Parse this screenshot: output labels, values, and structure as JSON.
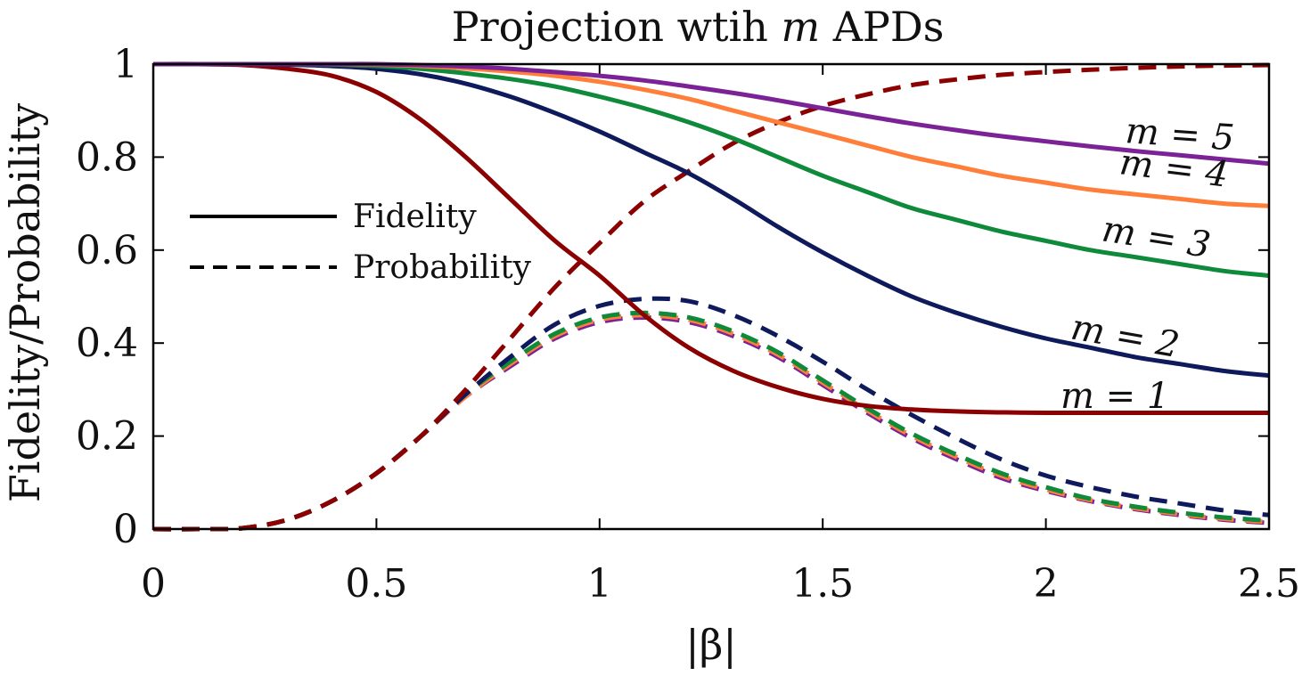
{
  "chart_data": {
    "type": "line",
    "title": "Projection wtih m APDs",
    "xlabel": "|β|",
    "ylabel": "Fidelity/Probability",
    "xlim": [
      0,
      2.5
    ],
    "ylim": [
      0,
      1
    ],
    "xticks": [
      0,
      0.5,
      1,
      1.5,
      2,
      2.5
    ],
    "xtick_labels": [
      "0",
      "0.5",
      "1",
      "1.5",
      "2",
      "2.5"
    ],
    "yticks": [
      0,
      0.2,
      0.4,
      0.6,
      0.8,
      1
    ],
    "ytick_labels": [
      "0",
      "0.2",
      "0.4",
      "0.6",
      "0.8",
      "1"
    ],
    "grid": false,
    "legend": {
      "placement": "center-left",
      "entries": [
        {
          "label": "Fidelity",
          "style": "solid"
        },
        {
          "label": "Probability",
          "style": "dashed"
        }
      ]
    },
    "x": [
      0,
      0.1,
      0.2,
      0.3,
      0.4,
      0.5,
      0.6,
      0.7,
      0.8,
      0.9,
      1.0,
      1.1,
      1.2,
      1.3,
      1.4,
      1.5,
      1.6,
      1.7,
      1.8,
      1.9,
      2.0,
      2.1,
      2.2,
      2.3,
      2.4,
      2.5
    ],
    "series": [
      {
        "name": "m = 1",
        "m": 1,
        "color": "#8b0000",
        "fidelity": [
          1.0,
          1.0,
          0.998,
          0.99,
          0.975,
          0.94,
          0.88,
          0.8,
          0.71,
          0.62,
          0.545,
          0.46,
          0.39,
          0.34,
          0.305,
          0.28,
          0.265,
          0.257,
          0.253,
          0.251,
          0.25,
          0.25,
          0.25,
          0.25,
          0.25,
          0.25
        ],
        "probability": [
          0.0,
          0.0,
          0.002,
          0.02,
          0.06,
          0.12,
          0.2,
          0.3,
          0.41,
          0.52,
          0.615,
          0.705,
          0.77,
          0.83,
          0.875,
          0.91,
          0.935,
          0.955,
          0.967,
          0.977,
          0.983,
          0.988,
          0.992,
          0.995,
          0.997,
          0.998
        ]
      },
      {
        "name": "m = 2",
        "m": 2,
        "color": "#0f1a5c",
        "fidelity": [
          1.0,
          1.0,
          1.0,
          0.999,
          0.996,
          0.99,
          0.978,
          0.958,
          0.93,
          0.895,
          0.855,
          0.81,
          0.765,
          0.71,
          0.65,
          0.595,
          0.545,
          0.5,
          0.465,
          0.435,
          0.41,
          0.39,
          0.37,
          0.355,
          0.34,
          0.33
        ],
        "probability": [
          0.0,
          0.0,
          0.002,
          0.02,
          0.06,
          0.12,
          0.2,
          0.29,
          0.37,
          0.44,
          0.48,
          0.495,
          0.49,
          0.46,
          0.415,
          0.36,
          0.3,
          0.245,
          0.195,
          0.15,
          0.115,
          0.09,
          0.07,
          0.055,
          0.04,
          0.03
        ]
      },
      {
        "name": "m = 3",
        "m": 3,
        "color": "#0e8a3a",
        "fidelity": [
          1.0,
          1.0,
          1.0,
          1.0,
          0.999,
          0.996,
          0.99,
          0.98,
          0.968,
          0.952,
          0.93,
          0.905,
          0.875,
          0.84,
          0.8,
          0.76,
          0.725,
          0.69,
          0.665,
          0.64,
          0.62,
          0.6,
          0.585,
          0.57,
          0.555,
          0.545
        ],
        "probability": [
          0.0,
          0.0,
          0.002,
          0.02,
          0.06,
          0.12,
          0.2,
          0.29,
          0.36,
          0.42,
          0.455,
          0.465,
          0.455,
          0.425,
          0.38,
          0.32,
          0.26,
          0.205,
          0.16,
          0.12,
          0.09,
          0.065,
          0.048,
          0.035,
          0.025,
          0.018
        ]
      },
      {
        "name": "m = 4",
        "m": 4,
        "color": "#ff7f3a",
        "fidelity": [
          1.0,
          1.0,
          1.0,
          1.0,
          1.0,
          0.999,
          0.996,
          0.991,
          0.984,
          0.975,
          0.962,
          0.945,
          0.925,
          0.9,
          0.875,
          0.85,
          0.825,
          0.8,
          0.78,
          0.76,
          0.745,
          0.73,
          0.72,
          0.71,
          0.7,
          0.695
        ],
        "probability": [
          0.0,
          0.0,
          0.002,
          0.02,
          0.06,
          0.12,
          0.2,
          0.285,
          0.355,
          0.415,
          0.45,
          0.46,
          0.45,
          0.42,
          0.375,
          0.315,
          0.255,
          0.2,
          0.155,
          0.115,
          0.085,
          0.062,
          0.045,
          0.032,
          0.022,
          0.015
        ]
      },
      {
        "name": "m = 5",
        "m": 5,
        "color": "#7b2396",
        "fidelity": [
          1.0,
          1.0,
          1.0,
          1.0,
          1.0,
          1.0,
          0.998,
          0.995,
          0.99,
          0.983,
          0.975,
          0.965,
          0.952,
          0.938,
          0.922,
          0.905,
          0.888,
          0.872,
          0.858,
          0.845,
          0.834,
          0.823,
          0.813,
          0.804,
          0.795,
          0.786
        ],
        "probability": [
          0.0,
          0.0,
          0.002,
          0.02,
          0.06,
          0.12,
          0.2,
          0.285,
          0.35,
          0.41,
          0.445,
          0.455,
          0.445,
          0.415,
          0.37,
          0.31,
          0.25,
          0.195,
          0.15,
          0.11,
          0.082,
          0.06,
          0.043,
          0.03,
          0.02,
          0.013
        ]
      }
    ],
    "annotations": [
      "m = 1",
      "m = 2",
      "m = 3",
      "m = 4",
      "m = 5"
    ]
  }
}
